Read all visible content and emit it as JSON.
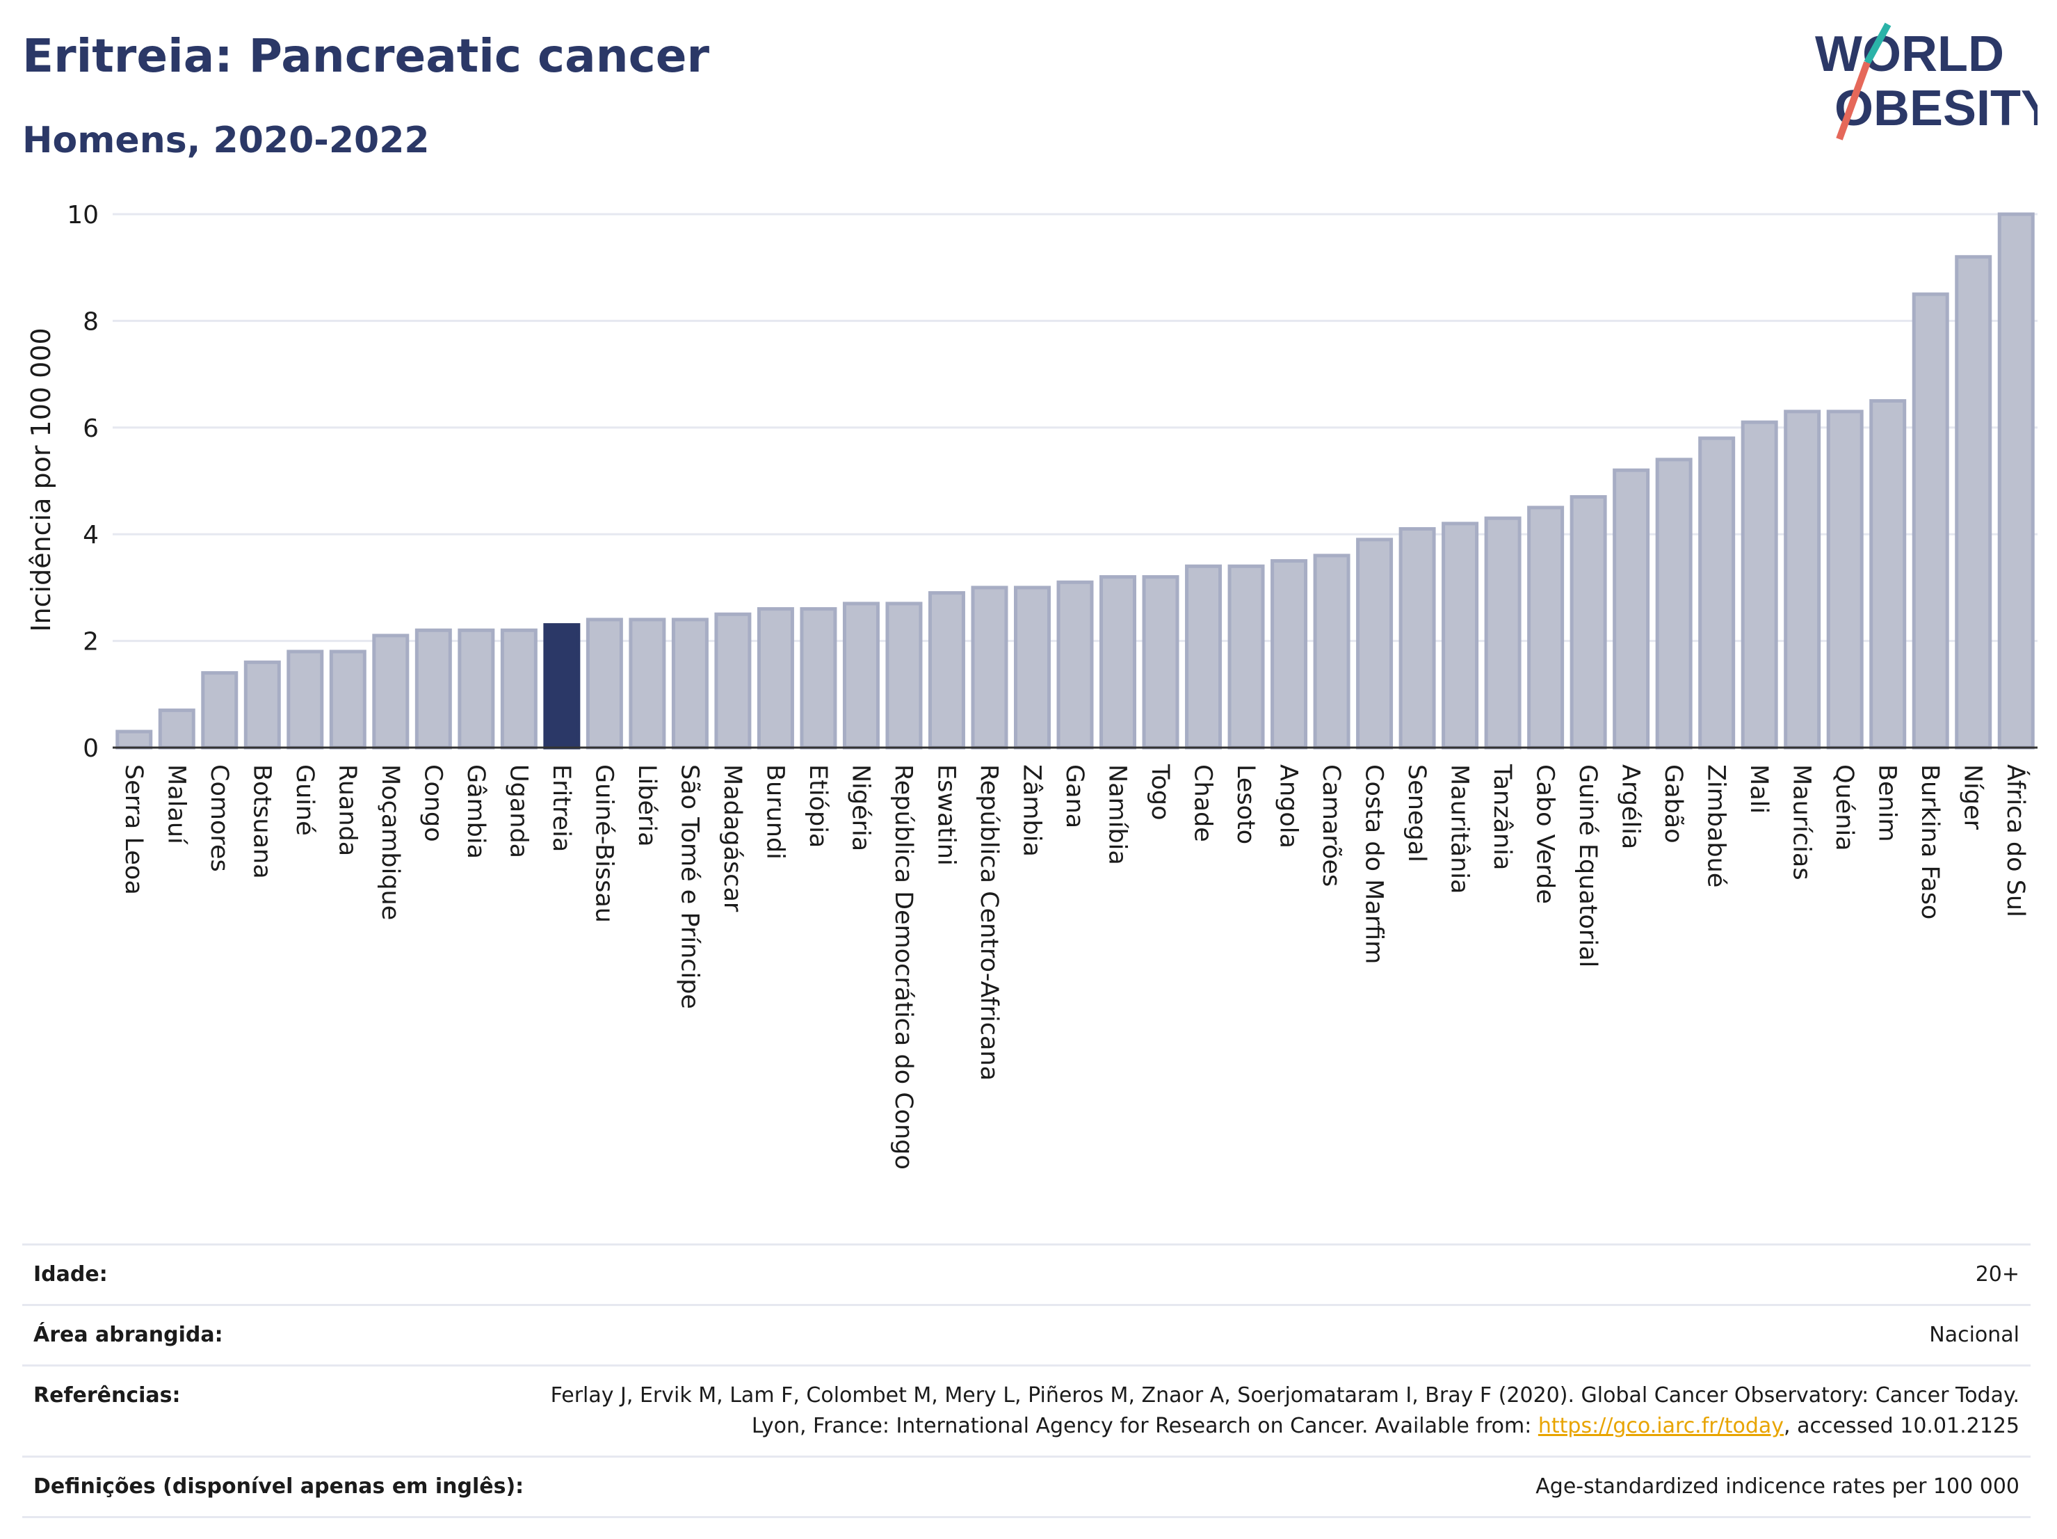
{
  "header": {
    "title": "Eritreia: Pancreatic cancer",
    "subtitle": "Homens, 2020-2022"
  },
  "logo": {
    "line1": "WORLD",
    "line2": "OBESITY"
  },
  "colors": {
    "highlight": "#2b3867",
    "bar_fill": "#bcc0cf",
    "bar_stroke": "#a7adc4",
    "grid": "#e6e8f0",
    "logo_teal": "#2bb3a8",
    "logo_coral": "#e5685a"
  },
  "chart_data": {
    "type": "bar",
    "ylabel": "Incidência por 100 000",
    "xlabel": "",
    "ylim": [
      0,
      10
    ],
    "yticks": [
      0,
      2,
      4,
      6,
      8,
      10
    ],
    "grid": true,
    "highlight": "Eritreia",
    "categories": [
      "Serra Leoa",
      "Malauí",
      "Comores",
      "Botsuana",
      "Guiné",
      "Ruanda",
      "Moçambique",
      "Congo",
      "Gâmbia",
      "Uganda",
      "Eritreia",
      "Guiné-Bissau",
      "Libéria",
      "São Tomé e Príncipe",
      "Madagáscar",
      "Burundi",
      "Etiópia",
      "Nigéria",
      "República Democrática do Congo",
      "Eswatini",
      "República Centro-Africana",
      "Zâmbia",
      "Gana",
      "Namíbia",
      "Togo",
      "Chade",
      "Lesoto",
      "Angola",
      "Camarões",
      "Costa do Marfim",
      "Senegal",
      "Mauritânia",
      "Tanzânia",
      "Cabo Verde",
      "Guiné Equatorial",
      "Argélia",
      "Gabão",
      "Zimbabué",
      "Mali",
      "Maurícias",
      "Quénia",
      "Benim",
      "Burkina Faso",
      "Níger",
      "África do Sul"
    ],
    "values": [
      0.3,
      0.7,
      1.4,
      1.6,
      1.8,
      1.8,
      2.1,
      2.2,
      2.2,
      2.2,
      2.3,
      2.4,
      2.4,
      2.4,
      2.5,
      2.6,
      2.6,
      2.7,
      2.7,
      2.9,
      3.0,
      3.0,
      3.1,
      3.2,
      3.2,
      3.4,
      3.4,
      3.5,
      3.6,
      3.9,
      4.1,
      4.2,
      4.3,
      4.5,
      4.7,
      5.2,
      5.4,
      5.8,
      6.1,
      6.3,
      6.3,
      6.5,
      8.5,
      9.2,
      10.0
    ]
  },
  "meta": [
    {
      "label": "Idade:",
      "value": "20+"
    },
    {
      "label": "Área abrangida:",
      "value": "Nacional"
    },
    {
      "label": "Referências:",
      "value_before": "Ferlay J, Ervik M, Lam F, Colombet M, Mery L, Piñeros M, Znaor A, Soerjomataram I, Bray F (2020). Global Cancer Observatory: Cancer Today. Lyon, France: International Agency for Research on Cancer. Available from: ",
      "link": "https://gco.iarc.fr/today",
      "value_after": ", accessed 10.01.2125"
    },
    {
      "label": "Definições (disponível apenas em inglês):",
      "value": "Age-standardized indicence rates per 100 000"
    }
  ]
}
